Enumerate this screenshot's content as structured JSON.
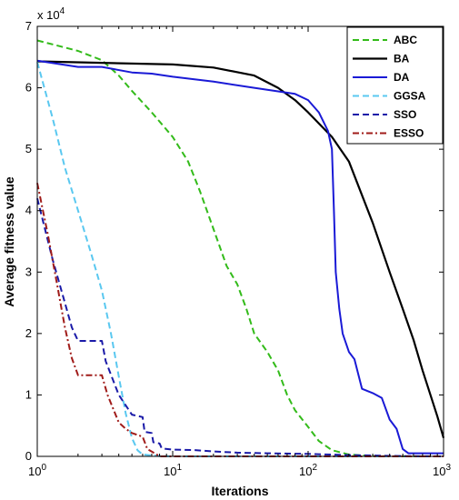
{
  "chart_data": {
    "type": "line",
    "xscale": "log",
    "xlim": [
      1,
      1000
    ],
    "ylim": [
      0,
      70000
    ],
    "xlabel": "Iterations",
    "ylabel": "Average fitness value",
    "y_multiplier_label": "x 10",
    "y_multiplier_exp": "4",
    "xticks": [
      {
        "value": 1,
        "base": "10",
        "exp": "0"
      },
      {
        "value": 10,
        "base": "10",
        "exp": "1"
      },
      {
        "value": 100,
        "base": "10",
        "exp": "2"
      },
      {
        "value": 1000,
        "base": "10",
        "exp": "3"
      }
    ],
    "yticks": [
      {
        "value": 0,
        "label": "0"
      },
      {
        "value": 10000,
        "label": "1"
      },
      {
        "value": 20000,
        "label": "2"
      },
      {
        "value": 30000,
        "label": "3"
      },
      {
        "value": 40000,
        "label": "4"
      },
      {
        "value": 50000,
        "label": "5"
      },
      {
        "value": 60000,
        "label": "6"
      },
      {
        "value": 70000,
        "label": "7"
      }
    ],
    "legend_position": "top-right",
    "grid": false,
    "series": [
      {
        "name": "ABC",
        "color": "#33bb1a",
        "dash": "dashed",
        "width": 2,
        "points": [
          [
            1,
            67700
          ],
          [
            2,
            66000
          ],
          [
            3,
            64500
          ],
          [
            4,
            62000
          ],
          [
            5,
            59500
          ],
          [
            7,
            56000
          ],
          [
            10,
            52000
          ],
          [
            13,
            48000
          ],
          [
            16,
            43000
          ],
          [
            20,
            37000
          ],
          [
            25,
            31000
          ],
          [
            30,
            28000
          ],
          [
            35,
            24000
          ],
          [
            40,
            20000
          ],
          [
            50,
            17000
          ],
          [
            60,
            14000
          ],
          [
            70,
            10000
          ],
          [
            80,
            7500
          ],
          [
            100,
            4800
          ],
          [
            120,
            2500
          ],
          [
            150,
            1000
          ],
          [
            200,
            300
          ],
          [
            300,
            50
          ],
          [
            500,
            0
          ],
          [
            1000,
            0
          ]
        ]
      },
      {
        "name": "BA",
        "color": "#000000",
        "dash": "solid",
        "width": 2.2,
        "points": [
          [
            1,
            64300
          ],
          [
            10,
            63800
          ],
          [
            20,
            63300
          ],
          [
            40,
            62000
          ],
          [
            60,
            60000
          ],
          [
            80,
            58000
          ],
          [
            100,
            56000
          ],
          [
            150,
            52000
          ],
          [
            200,
            48000
          ],
          [
            300,
            38000
          ],
          [
            400,
            30000
          ],
          [
            500,
            24000
          ],
          [
            600,
            19000
          ],
          [
            700,
            14000
          ],
          [
            800,
            10000
          ],
          [
            900,
            6500
          ],
          [
            1000,
            3000
          ]
        ]
      },
      {
        "name": "DA",
        "color": "#1a1ad6",
        "dash": "solid",
        "width": 2,
        "points": [
          [
            1,
            64400
          ],
          [
            2,
            63400
          ],
          [
            3,
            63400
          ],
          [
            5,
            62500
          ],
          [
            7,
            62300
          ],
          [
            10,
            61800
          ],
          [
            20,
            61000
          ],
          [
            40,
            60000
          ],
          [
            80,
            59000
          ],
          [
            100,
            58000
          ],
          [
            120,
            56000
          ],
          [
            140,
            53000
          ],
          [
            150,
            50000
          ],
          [
            155,
            40000
          ],
          [
            160,
            30000
          ],
          [
            170,
            24000
          ],
          [
            180,
            20000
          ],
          [
            200,
            17000
          ],
          [
            220,
            15800
          ],
          [
            250,
            11000
          ],
          [
            300,
            10300
          ],
          [
            350,
            9500
          ],
          [
            400,
            6000
          ],
          [
            450,
            4500
          ],
          [
            500,
            1200
          ],
          [
            550,
            500
          ],
          [
            1000,
            500
          ]
        ]
      },
      {
        "name": "GGSA",
        "color": "#5ac8f0",
        "dash": "dashed",
        "width": 2,
        "points": [
          [
            1,
            64200
          ],
          [
            1.3,
            55000
          ],
          [
            1.6,
            47000
          ],
          [
            2,
            40000
          ],
          [
            2.5,
            33000
          ],
          [
            3,
            27000
          ],
          [
            3.5,
            20000
          ],
          [
            4,
            13000
          ],
          [
            4.5,
            7000
          ],
          [
            5,
            3000
          ],
          [
            5.5,
            1000
          ],
          [
            6,
            300
          ],
          [
            8,
            50
          ],
          [
            10,
            0
          ],
          [
            1000,
            0
          ]
        ]
      },
      {
        "name": "SSO",
        "color": "#1a1aa8",
        "dash": "dashed",
        "width": 2,
        "points": [
          [
            1,
            42000
          ],
          [
            1.3,
            32000
          ],
          [
            1.6,
            25000
          ],
          [
            1.8,
            21000
          ],
          [
            2,
            18800
          ],
          [
            3,
            18800
          ],
          [
            3.2,
            15500
          ],
          [
            4,
            10000
          ],
          [
            5,
            6800
          ],
          [
            6,
            6400
          ],
          [
            6.2,
            4000
          ],
          [
            7,
            3800
          ],
          [
            7.2,
            2300
          ],
          [
            8,
            2100
          ],
          [
            8.3,
            1300
          ],
          [
            10,
            1100
          ],
          [
            15,
            1000
          ],
          [
            20,
            800
          ],
          [
            30,
            600
          ],
          [
            50,
            500
          ],
          [
            100,
            400
          ],
          [
            200,
            200
          ],
          [
            500,
            50
          ],
          [
            1000,
            0
          ]
        ]
      },
      {
        "name": "ESSO",
        "color": "#a01c1a",
        "dash": "dashdot",
        "width": 2,
        "points": [
          [
            1,
            44500
          ],
          [
            1.2,
            36000
          ],
          [
            1.4,
            28000
          ],
          [
            1.6,
            21000
          ],
          [
            1.8,
            16000
          ],
          [
            2,
            13200
          ],
          [
            3,
            13200
          ],
          [
            3.3,
            10000
          ],
          [
            4,
            5500
          ],
          [
            4.5,
            4500
          ],
          [
            5,
            3800
          ],
          [
            6,
            3200
          ],
          [
            6.5,
            1200
          ],
          [
            7.5,
            400
          ],
          [
            8,
            0
          ],
          [
            1000,
            0
          ]
        ]
      }
    ]
  }
}
